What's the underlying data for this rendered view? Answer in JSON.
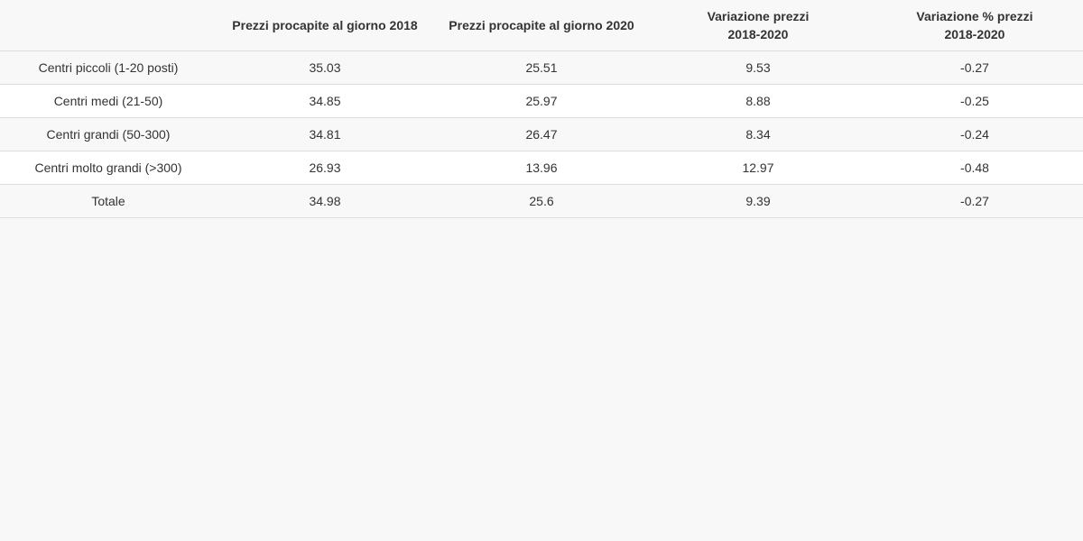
{
  "chart_data": {
    "type": "table",
    "columns": [
      {
        "lines": [
          ""
        ]
      },
      {
        "lines": [
          "Prezzi procapite al giorno 2018"
        ]
      },
      {
        "lines": [
          "Prezzi procapite al giorno 2020"
        ]
      },
      {
        "lines": [
          "Variazione prezzi",
          "2018-2020"
        ]
      },
      {
        "lines": [
          "Variazione % prezzi",
          "2018-2020"
        ]
      }
    ],
    "rows": [
      [
        "Centri piccoli (1-20 posti)",
        "35.03",
        "25.51",
        "9.53",
        "-0.27"
      ],
      [
        "Centri medi (21-50)",
        "34.85",
        "25.97",
        "8.88",
        "-0.25"
      ],
      [
        "Centri grandi (50-300)",
        "34.81",
        "26.47",
        "8.34",
        "-0.24"
      ],
      [
        "Centri molto grandi (>300)",
        "26.93",
        "13.96",
        "12.97",
        "-0.48"
      ],
      [
        "Totale",
        "34.98",
        "25.6",
        "9.39",
        "-0.27"
      ]
    ]
  }
}
